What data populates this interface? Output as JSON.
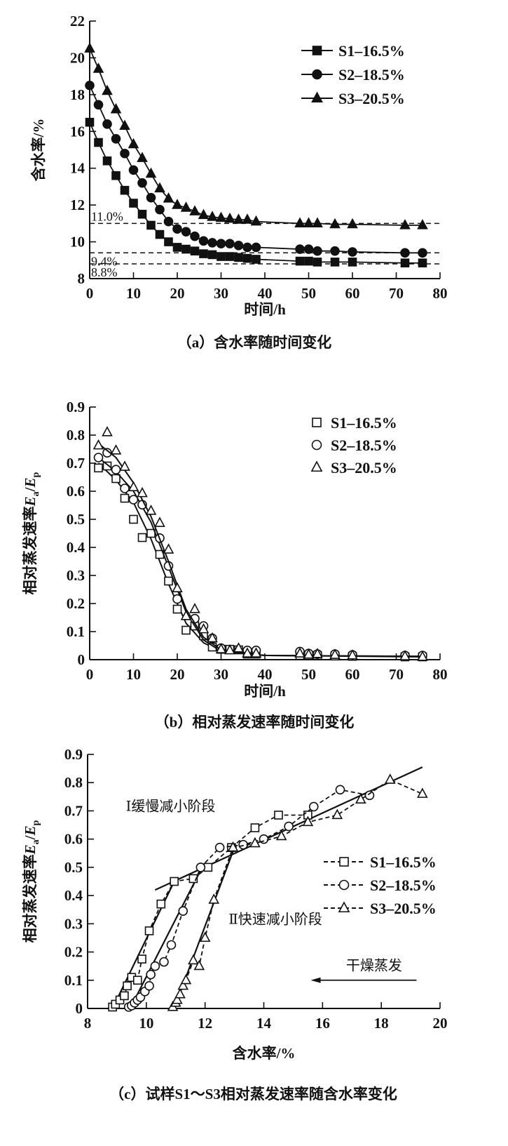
{
  "chart_data": [
    {
      "type": "line",
      "caption": "（a）含水率随时间变化",
      "xlabel": "时间/h",
      "ylabel": "含水率/%",
      "xlim": [
        0,
        80
      ],
      "ylim": [
        8,
        22
      ],
      "xticks": [
        0,
        10,
        20,
        30,
        40,
        50,
        60,
        70,
        80
      ],
      "yticks": [
        8,
        10,
        12,
        14,
        16,
        18,
        20,
        22
      ],
      "grid": false,
      "legend_position": "top-right",
      "reference_lines": [
        {
          "y": 11.0,
          "label": "11.0%"
        },
        {
          "y": 9.4,
          "label": "9.4%"
        },
        {
          "y": 8.8,
          "label": "8.8%"
        }
      ],
      "x": [
        0,
        2,
        4,
        6,
        8,
        10,
        12,
        14,
        16,
        18,
        20,
        22,
        24,
        26,
        28,
        30,
        32,
        34,
        36,
        38,
        48,
        50,
        52,
        56,
        60,
        72,
        76
      ],
      "series": [
        {
          "name": "S1–16.5%",
          "marker": "filled-square",
          "values": [
            16.5,
            15.4,
            14.4,
            13.6,
            12.8,
            12.1,
            11.5,
            10.9,
            10.4,
            10.0,
            9.7,
            9.6,
            9.5,
            9.35,
            9.3,
            9.2,
            9.2,
            9.15,
            9.1,
            9.05,
            8.95,
            8.95,
            8.9,
            8.9,
            8.9,
            8.85,
            8.85
          ]
        },
        {
          "name": "S2–18.5%",
          "marker": "filled-circle",
          "values": [
            18.5,
            17.45,
            16.4,
            15.6,
            14.8,
            13.9,
            13.2,
            12.4,
            11.75,
            11.1,
            10.7,
            10.55,
            10.3,
            10.05,
            9.95,
            9.9,
            9.9,
            9.8,
            9.7,
            9.7,
            9.6,
            9.6,
            9.5,
            9.5,
            9.45,
            9.4,
            9.4
          ]
        },
        {
          "name": "S3–20.5%",
          "marker": "filled-triangle",
          "values": [
            20.5,
            19.4,
            18.2,
            17.2,
            16.3,
            15.3,
            14.55,
            13.7,
            12.9,
            12.35,
            12.0,
            11.85,
            11.65,
            11.45,
            11.35,
            11.3,
            11.25,
            11.2,
            11.2,
            11.1,
            11.0,
            11.0,
            11.0,
            10.95,
            10.95,
            10.9,
            10.9
          ]
        }
      ]
    },
    {
      "type": "scatter",
      "caption": "（b）相对蒸发速率随时间变化",
      "xlabel": "时间/h",
      "ylabel": {
        "text": "相对蒸发速率",
        "num": "E",
        "num_sub": "a",
        "den": "E",
        "den_sub": "p"
      },
      "xlim": [
        0,
        80
      ],
      "ylim": [
        0,
        0.9
      ],
      "xticks": [
        0,
        10,
        20,
        30,
        40,
        50,
        60,
        70,
        80
      ],
      "yticks": [
        0.1,
        0.2,
        0.3,
        0.4,
        0.5,
        0.6,
        0.7,
        0.8,
        0.9
      ],
      "grid": false,
      "legend_position": "top-right",
      "series": [
        {
          "name": "S1–16.5%",
          "marker": "open-square",
          "points": [
            [
              2,
              0.683
            ],
            [
              4,
              0.69
            ],
            [
              6,
              0.645
            ],
            [
              8,
              0.575
            ],
            [
              10,
              0.5
            ],
            [
              12,
              0.435
            ],
            [
              14,
              0.45
            ],
            [
              16,
              0.375
            ],
            [
              18,
              0.28
            ],
            [
              20,
              0.18
            ],
            [
              22,
              0.105
            ],
            [
              24,
              0.12
            ],
            [
              26,
              0.085
            ],
            [
              28,
              0.045
            ],
            [
              30,
              0.037
            ],
            [
              32,
              0.037
            ],
            [
              34,
              0.035
            ],
            [
              36,
              0.02
            ],
            [
              38,
              0.02
            ],
            [
              48,
              0.015
            ],
            [
              50,
              0.015
            ],
            [
              52,
              0.015
            ],
            [
              56,
              0.013
            ],
            [
              60,
              0.012
            ],
            [
              72,
              0.01
            ],
            [
              76,
              0.01
            ]
          ],
          "fit": [
            [
              2,
              0.7
            ],
            [
              6,
              0.64
            ],
            [
              10,
              0.56
            ],
            [
              14,
              0.43
            ],
            [
              18,
              0.27
            ],
            [
              22,
              0.13
            ],
            [
              26,
              0.06
            ],
            [
              30,
              0.03
            ],
            [
              40,
              0.015
            ],
            [
              76,
              0.01
            ]
          ]
        },
        {
          "name": "S2–18.5%",
          "marker": "open-circle",
          "points": [
            [
              2,
              0.72
            ],
            [
              4,
              0.737
            ],
            [
              6,
              0.677
            ],
            [
              8,
              0.61
            ],
            [
              10,
              0.57
            ],
            [
              12,
              0.552
            ],
            [
              16,
              0.433
            ],
            [
              18,
              0.334
            ],
            [
              20,
              0.216
            ],
            [
              24,
              0.146
            ],
            [
              26,
              0.12
            ],
            [
              28,
              0.076
            ],
            [
              30,
              0.041
            ],
            [
              36,
              0.033
            ],
            [
              38,
              0.033
            ],
            [
              48,
              0.029
            ],
            [
              50,
              0.022
            ],
            [
              52,
              0.02
            ],
            [
              56,
              0.02
            ],
            [
              60,
              0.017
            ],
            [
              72,
              0.015
            ],
            [
              76,
              0.015
            ]
          ],
          "fit": [
            [
              2,
              0.72
            ],
            [
              6,
              0.67
            ],
            [
              10,
              0.6
            ],
            [
              14,
              0.49
            ],
            [
              18,
              0.33
            ],
            [
              22,
              0.17
            ],
            [
              26,
              0.07
            ],
            [
              30,
              0.03
            ],
            [
              40,
              0.015
            ],
            [
              76,
              0.012
            ]
          ]
        },
        {
          "name": "S3–20.5%",
          "marker": "open-triangle",
          "points": [
            [
              2,
              0.763
            ],
            [
              4,
              0.81
            ],
            [
              6,
              0.745
            ],
            [
              8,
              0.687
            ],
            [
              10,
              0.614
            ],
            [
              12,
              0.593
            ],
            [
              14,
              0.53
            ],
            [
              16,
              0.487
            ],
            [
              18,
              0.392
            ],
            [
              20,
              0.254
            ],
            [
              22,
              0.155
            ],
            [
              24,
              0.18
            ],
            [
              26,
              0.108
            ],
            [
              28,
              0.076
            ],
            [
              30,
              0.037
            ],
            [
              32,
              0.033
            ],
            [
              34,
              0.04
            ],
            [
              36,
              0.022
            ],
            [
              38,
              0.022
            ],
            [
              48,
              0.022
            ],
            [
              50,
              0.018
            ],
            [
              52,
              0.02
            ],
            [
              56,
              0.017
            ],
            [
              60,
              0.015
            ],
            [
              72,
              0.012
            ],
            [
              76,
              0.01
            ]
          ],
          "fit": [
            [
              2,
              0.77
            ],
            [
              6,
              0.72
            ],
            [
              10,
              0.63
            ],
            [
              14,
              0.51
            ],
            [
              18,
              0.35
            ],
            [
              22,
              0.18
            ],
            [
              26,
              0.08
            ],
            [
              30,
              0.035
            ],
            [
              40,
              0.015
            ],
            [
              76,
              0.012
            ]
          ]
        }
      ]
    },
    {
      "type": "line",
      "caption": "（c）试样S1～S3相对蒸发速率随含水率变化",
      "xlabel": "含水率/%",
      "ylabel": {
        "text": "相对蒸发速率",
        "num": "E",
        "num_sub": "a",
        "den": "E",
        "den_sub": "p"
      },
      "xlim": [
        8,
        20
      ],
      "ylim": [
        0,
        0.9
      ],
      "xticks": [
        8,
        10,
        12,
        14,
        16,
        18,
        20
      ],
      "yticks": [
        0,
        0.1,
        0.2,
        0.3,
        0.4,
        0.5,
        0.6,
        0.7,
        0.8,
        0.9
      ],
      "grid": false,
      "legend_position": "right",
      "annotations": [
        {
          "text": "Ⅰ缓慢减小阶段",
          "x": 9.3,
          "y": 0.7
        },
        {
          "text": "Ⅱ快速减小阶段",
          "x": 12.8,
          "y": 0.3
        },
        {
          "text": "干燥蒸发",
          "x": 16.8,
          "y": 0.135,
          "arrow_from": [
            19.2,
            0.1
          ],
          "arrow_to": [
            15.6,
            0.1
          ]
        }
      ],
      "fit_lines": [
        {
          "stage": "I",
          "points": [
            [
              10.3,
              0.42
            ],
            [
              19.4,
              0.855
            ]
          ]
        },
        {
          "stage": "II-S1",
          "points": [
            [
              8.85,
              0.0
            ],
            [
              10.95,
              0.45
            ]
          ]
        },
        {
          "stage": "II-S2",
          "points": [
            [
              9.45,
              0.0
            ],
            [
              11.9,
              0.5
            ]
          ]
        },
        {
          "stage": "II-S3",
          "points": [
            [
              10.95,
              0.0
            ],
            [
              13.0,
              0.57
            ]
          ]
        }
      ],
      "series": [
        {
          "name": "S1–16.5%",
          "marker": "open-square",
          "line": "dashed",
          "points": [
            [
              8.85,
              0.005
            ],
            [
              8.95,
              0.015
            ],
            [
              9.1,
              0.03
            ],
            [
              9.25,
              0.045
            ],
            [
              9.35,
              0.08
            ],
            [
              9.5,
              0.11
            ],
            [
              9.7,
              0.1
            ],
            [
              9.85,
              0.175
            ],
            [
              10.1,
              0.275
            ],
            [
              10.5,
              0.37
            ],
            [
              10.95,
              0.45
            ],
            [
              11.6,
              0.46
            ],
            [
              12.1,
              0.5
            ],
            [
              12.9,
              0.57
            ],
            [
              13.7,
              0.64
            ],
            [
              14.5,
              0.685
            ],
            [
              15.5,
              0.685
            ]
          ]
        },
        {
          "name": "S2–18.5%",
          "marker": "open-circle",
          "line": "dashed",
          "points": [
            [
              9.4,
              0.005
            ],
            [
              9.5,
              0.01
            ],
            [
              9.6,
              0.02
            ],
            [
              9.7,
              0.03
            ],
            [
              9.8,
              0.04
            ],
            [
              9.95,
              0.06
            ],
            [
              10.1,
              0.08
            ],
            [
              10.15,
              0.12
            ],
            [
              10.3,
              0.15
            ],
            [
              10.6,
              0.165
            ],
            [
              10.85,
              0.225
            ],
            [
              11.25,
              0.345
            ],
            [
              11.85,
              0.5
            ],
            [
              12.5,
              0.57
            ],
            [
              13.3,
              0.58
            ],
            [
              14.0,
              0.6
            ],
            [
              14.85,
              0.645
            ],
            [
              15.7,
              0.715
            ],
            [
              16.6,
              0.775
            ],
            [
              17.6,
              0.755
            ]
          ]
        },
        {
          "name": "S3–20.5%",
          "marker": "open-triangle",
          "line": "dashed",
          "points": [
            [
              10.9,
              0.005
            ],
            [
              11.0,
              0.02
            ],
            [
              11.05,
              0.03
            ],
            [
              11.15,
              0.05
            ],
            [
              11.25,
              0.08
            ],
            [
              11.35,
              0.1
            ],
            [
              11.6,
              0.17
            ],
            [
              11.8,
              0.15
            ],
            [
              12.0,
              0.25
            ],
            [
              12.3,
              0.385
            ],
            [
              12.95,
              0.57
            ],
            [
              13.7,
              0.585
            ],
            [
              14.6,
              0.61
            ],
            [
              15.5,
              0.66
            ],
            [
              16.5,
              0.685
            ],
            [
              17.3,
              0.74
            ],
            [
              18.3,
              0.81
            ],
            [
              19.4,
              0.76
            ]
          ]
        }
      ]
    }
  ]
}
